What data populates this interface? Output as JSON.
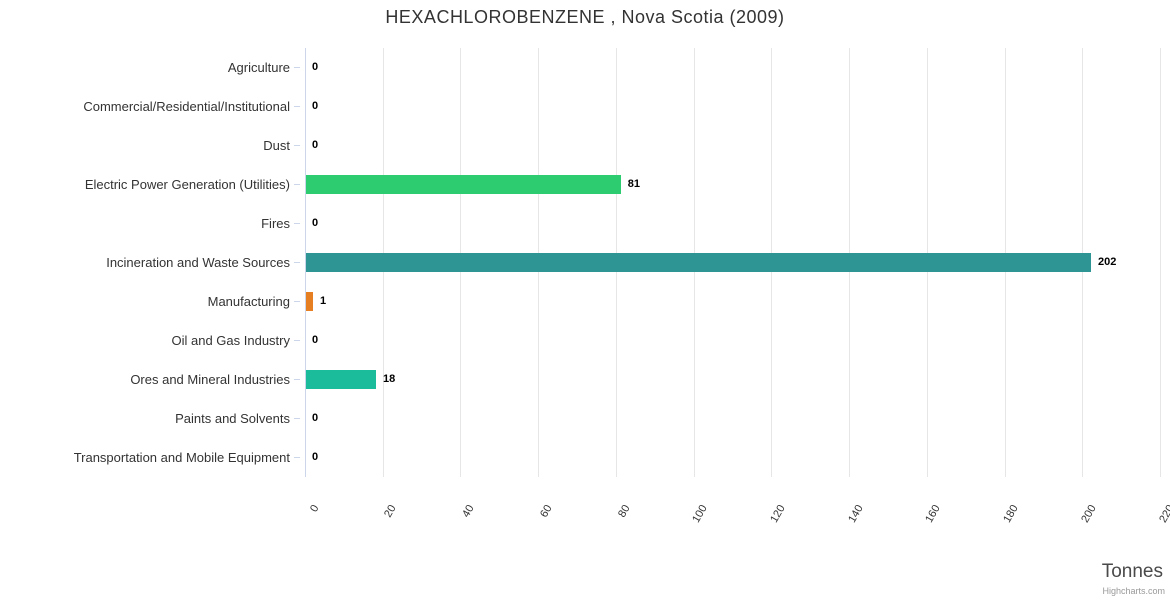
{
  "title": "HEXACHLOROBENZENE , Nova Scotia (2009)",
  "value_axis": {
    "title": "Tonnes",
    "ticks": [
      0,
      20,
      40,
      60,
      80,
      100,
      120,
      140,
      160,
      180,
      200,
      220
    ],
    "max": 220
  },
  "credits": "Highcharts.com",
  "chart_data": {
    "type": "bar",
    "orientation": "horizontal",
    "title": "HEXACHLOROBENZENE , Nova Scotia (2009)",
    "categories": [
      "Agriculture",
      "Commercial/Residential/Institutional",
      "Dust",
      "Electric Power Generation (Utilities)",
      "Fires",
      "Incineration and Waste Sources",
      "Manufacturing",
      "Oil and Gas Industry",
      "Ores and Mineral Industries",
      "Paints and Solvents",
      "Transportation and Mobile Equipment"
    ],
    "values": [
      0,
      0,
      0,
      81,
      0,
      202,
      1,
      0,
      18,
      0,
      0
    ],
    "data_labels": [
      "0",
      "0",
      "0",
      "81",
      "0",
      "202",
      "1",
      "0",
      "18",
      "0",
      "0"
    ],
    "bar_colors": [
      null,
      null,
      null,
      "#2ecc71",
      null,
      "#2e9494",
      "#e67e22",
      null,
      "#1abc9c",
      null,
      null
    ],
    "xlabel": "Tonnes",
    "ylabel": "",
    "xlim": [
      0,
      220
    ],
    "tick_interval": 20,
    "grid": true,
    "legend": "none"
  },
  "style": {
    "grid_color": "#e6e6e6",
    "axis_line_color": "#ccd6eb",
    "title_color": "#333333",
    "category_label_color": "#333333",
    "data_label_color": "#000000",
    "axis_title_color": "#4a4a4a",
    "credits_color": "#999999"
  }
}
